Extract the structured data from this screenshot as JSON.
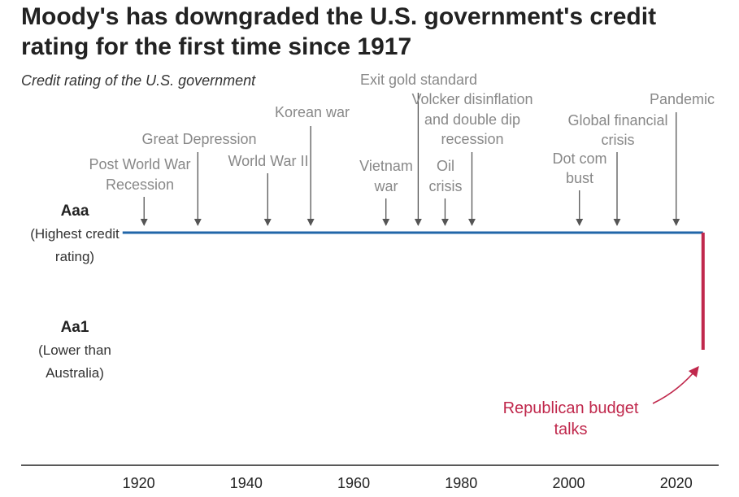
{
  "title": "Moody's has downgraded the U.S. government's credit rating for the first time since 1917",
  "subtitle": "Credit rating of the U.S. government",
  "chart_data": {
    "type": "line",
    "title": "Moody's has downgraded the U.S. government's credit rating for the first time since 1917",
    "subtitle": "Credit rating of the U.S. government",
    "xlim": [
      1901,
      2027
    ],
    "x_ticks": [
      1920,
      1940,
      1960,
      1980,
      2000,
      2020
    ],
    "levels": [
      {
        "id": "Aaa",
        "name": "Aaa",
        "desc": [
          "(Highest credit",
          "rating)"
        ]
      },
      {
        "id": "Aa1",
        "name": "Aa1",
        "desc": [
          "(Lower than",
          "Australia)"
        ]
      }
    ],
    "series": [
      {
        "name": "Aaa rating",
        "color": "#2166a8",
        "from": 1917,
        "to": 2025,
        "level": "Aaa"
      },
      {
        "name": "Downgrade",
        "color": "#c0284c",
        "year": 2025,
        "from_level": "Aaa",
        "to_level": "Aa1"
      }
    ],
    "events": [
      {
        "year": 1921,
        "lines": [
          "Post World War",
          "Recession"
        ]
      },
      {
        "year": 1931,
        "lines": [
          "Great Depression"
        ]
      },
      {
        "year": 1944,
        "lines": [
          "World War II"
        ]
      },
      {
        "year": 1952,
        "lines": [
          "Korean war"
        ]
      },
      {
        "year": 1966,
        "lines": [
          "Vietnam",
          "war"
        ]
      },
      {
        "year": 1972,
        "lines": [
          "Exit gold standard"
        ]
      },
      {
        "year": 1982,
        "lines": [
          "Volcker disinflation",
          "and double dip",
          "recession"
        ]
      },
      {
        "year": 1977,
        "lines": [
          "Oil",
          "crisis"
        ]
      },
      {
        "year": 2002,
        "lines": [
          "Dot com",
          "bust"
        ]
      },
      {
        "year": 2009,
        "lines": [
          "Global financial",
          "crisis"
        ]
      },
      {
        "year": 2020,
        "lines": [
          "Pandemic"
        ]
      }
    ],
    "annotation": {
      "lines": [
        "Republican budget",
        "talks"
      ],
      "color": "#c0284c"
    }
  }
}
